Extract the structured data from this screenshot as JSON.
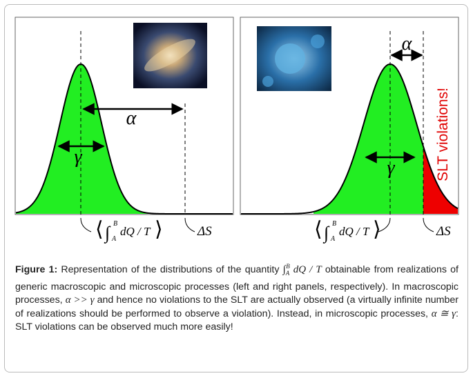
{
  "left_panel": {
    "alpha": "α",
    "gamma": "γ",
    "mean_label": {
      "open": "⟨",
      "integral": "∫",
      "upper": "B",
      "lower": "A",
      "body": "dQ / T",
      "close": "⟩"
    },
    "entropy_label": "ΔS"
  },
  "right_panel": {
    "alpha": "α",
    "gamma": "γ",
    "violations": "SLT violations!",
    "mean_label": {
      "open": "⟨",
      "integral": "∫",
      "upper": "B",
      "lower": "A",
      "body": "dQ / T",
      "close": "⟩"
    },
    "entropy_label": "ΔS"
  },
  "caption": {
    "label": "Figure 1:",
    "text_1": "Representation of the distributions of the quantity",
    "math_1": {
      "integral": "∫",
      "upper": "B",
      "lower": "A",
      "body": "dQ / T"
    },
    "text_2": "obtainable from realizations of generic macroscopic and microscopic processes (left and right panels, respectively). In macroscopic processes,",
    "math_2": "α >> γ",
    "text_3": "and hence no violations to the SLT are actually observed (a virtually infinite number of realizations should be performed to observe a violation). Instead, in microscopic processes,",
    "math_3": "α ≅ γ",
    "text_4": ": SLT violations can be observed much more easily!"
  }
}
